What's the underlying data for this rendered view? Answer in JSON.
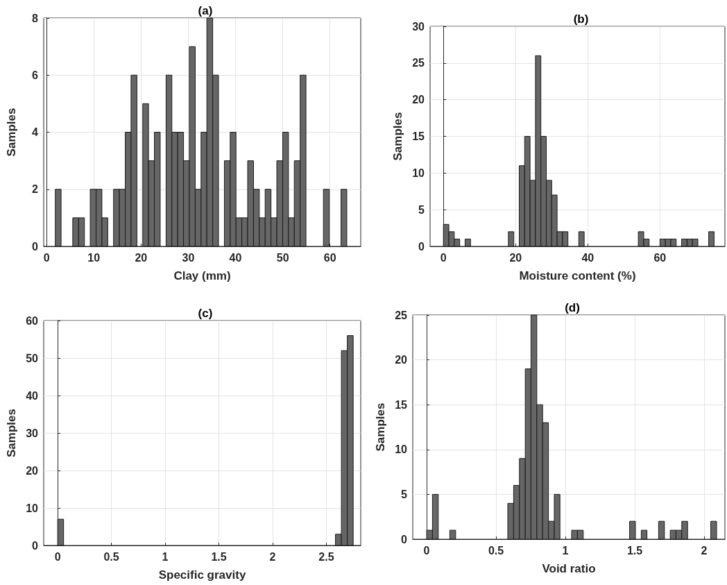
{
  "chart_data": [
    {
      "type": "histogram",
      "title": "(a)",
      "xlabel": "Clay (mm)",
      "ylabel": "Samples",
      "color": "#666666",
      "grid": true,
      "bins": [
        1.85,
        3.08,
        4.32,
        5.55,
        6.79,
        8.02,
        9.25,
        10.49,
        11.72,
        12.96,
        14.19,
        15.42,
        16.66,
        17.89,
        19.13,
        20.36,
        21.59,
        22.83,
        24.06,
        25.3,
        26.53,
        27.76,
        29.0,
        30.23,
        31.47,
        32.7,
        33.93,
        35.17,
        36.4,
        37.64,
        38.87,
        40.1,
        41.34,
        42.57,
        43.81,
        45.04,
        46.27,
        47.51,
        48.74,
        49.98,
        51.21,
        52.44,
        53.68,
        54.91,
        56.15,
        57.38,
        58.61,
        59.85,
        61.08,
        62.32,
        63.55
      ],
      "values": [
        2,
        0,
        0,
        1,
        1,
        0,
        2,
        2,
        1,
        0,
        2,
        2,
        4,
        6,
        0,
        5,
        3,
        4,
        0,
        6,
        4,
        4,
        3,
        7,
        2,
        4,
        8,
        6,
        0,
        3,
        4,
        1,
        1,
        3,
        2,
        1,
        2,
        1,
        3,
        4,
        1,
        3,
        6,
        0,
        0,
        0,
        2,
        0,
        0,
        2
      ],
      "xlim": [
        -0.6,
        66.5
      ],
      "xticks": [
        0,
        10,
        20,
        30,
        40,
        50,
        60
      ],
      "ylim": [
        0,
        8
      ],
      "yticks": [
        0,
        2,
        4,
        6,
        8
      ]
    },
    {
      "type": "histogram",
      "title": "(b)",
      "xlabel": "Moisture content (%)",
      "ylabel": "Samples",
      "color": "#666666",
      "grid": true,
      "bins": [
        0,
        1.5,
        3,
        4.5,
        6,
        7.5,
        9,
        10.5,
        12,
        13.5,
        15,
        16.5,
        18,
        19.5,
        21,
        22.5,
        24,
        25.5,
        27,
        28.5,
        30,
        31.5,
        33,
        34.5,
        36,
        37.5,
        39,
        40.5,
        42,
        43.5,
        45,
        46.5,
        48,
        49.5,
        51,
        52.5,
        54,
        55.5,
        57,
        58.5,
        60,
        61.5,
        63,
        64.5,
        66,
        67.5,
        69,
        70.5,
        72,
        73.5,
        75
      ],
      "values": [
        3,
        2,
        1,
        0,
        1,
        0,
        0,
        0,
        0,
        0,
        0,
        0,
        2,
        0,
        11,
        15,
        9,
        26,
        15,
        9,
        7,
        2,
        2,
        0,
        0,
        2,
        0,
        0,
        0,
        0,
        0,
        0,
        0,
        0,
        0,
        0,
        2,
        1,
        0,
        0,
        1,
        1,
        1,
        0,
        1,
        1,
        1,
        0,
        0,
        2
      ],
      "xlim": [
        -3.7,
        78
      ],
      "xticks": [
        0,
        20,
        40,
        60
      ],
      "ylim": [
        0,
        30
      ],
      "yticks": [
        0,
        5,
        10,
        15,
        20,
        25,
        30
      ]
    },
    {
      "type": "histogram",
      "title": "(c)",
      "xlabel": "Specific gravity",
      "ylabel": "Samples",
      "color": "#666666",
      "grid": true,
      "bins": [
        0,
        0.055,
        0.11,
        0.165,
        0.22,
        0.275,
        0.33,
        0.385,
        0.44,
        0.495,
        0.55,
        0.605,
        0.66,
        0.715,
        0.77,
        0.825,
        0.88,
        0.935,
        0.99,
        1.045,
        1.1,
        1.155,
        1.21,
        1.265,
        1.32,
        1.375,
        1.43,
        1.485,
        1.54,
        1.595,
        1.65,
        1.705,
        1.76,
        1.815,
        1.87,
        1.925,
        1.98,
        2.035,
        2.09,
        2.145,
        2.2,
        2.255,
        2.31,
        2.365,
        2.42,
        2.475,
        2.53,
        2.585,
        2.64,
        2.695,
        2.75
      ],
      "values": [
        7,
        0,
        0,
        0,
        0,
        0,
        0,
        0,
        0,
        0,
        0,
        0,
        0,
        0,
        0,
        0,
        0,
        0,
        0,
        0,
        0,
        0,
        0,
        0,
        0,
        0,
        0,
        0,
        0,
        0,
        0,
        0,
        0,
        0,
        0,
        0,
        0,
        0,
        0,
        0,
        0,
        0,
        0,
        0,
        0,
        0,
        0,
        3,
        52,
        56
      ],
      "xlim": [
        -0.13,
        2.82
      ],
      "xticks": [
        0,
        0.5,
        1,
        1.5,
        2,
        2.5
      ],
      "ylim": [
        0,
        60
      ],
      "yticks": [
        0,
        10,
        20,
        30,
        40,
        50,
        60
      ]
    },
    {
      "type": "histogram",
      "title": "(d)",
      "xlabel": "Void ratio",
      "ylabel": "Samples",
      "color": "#666666",
      "grid": true,
      "bins": [
        0,
        0.042,
        0.084,
        0.125,
        0.167,
        0.209,
        0.251,
        0.293,
        0.334,
        0.376,
        0.418,
        0.46,
        0.502,
        0.543,
        0.585,
        0.627,
        0.669,
        0.711,
        0.752,
        0.794,
        0.836,
        0.878,
        0.92,
        0.961,
        1.003,
        1.045,
        1.087,
        1.129,
        1.17,
        1.212,
        1.254,
        1.296,
        1.338,
        1.379,
        1.421,
        1.463,
        1.505,
        1.547,
        1.588,
        1.63,
        1.672,
        1.714,
        1.756,
        1.797,
        1.839,
        1.881,
        1.923,
        1.965,
        2.006,
        2.048,
        2.09
      ],
      "values": [
        1,
        5,
        0,
        0,
        1,
        0,
        0,
        0,
        0,
        0,
        0,
        0,
        0,
        0,
        4,
        6,
        9,
        19,
        25,
        15,
        13,
        2,
        5,
        0,
        0,
        1,
        1,
        0,
        0,
        0,
        0,
        0,
        0,
        0,
        0,
        2,
        0,
        1,
        0,
        0,
        2,
        0,
        1,
        1,
        2,
        0,
        0,
        0,
        0,
        2
      ],
      "xlim": [
        -0.1,
        2.15
      ],
      "xticks": [
        0,
        0.5,
        1,
        1.5,
        2
      ],
      "ylim": [
        0,
        25
      ],
      "yticks": [
        0,
        5,
        10,
        15,
        20,
        25
      ]
    }
  ]
}
